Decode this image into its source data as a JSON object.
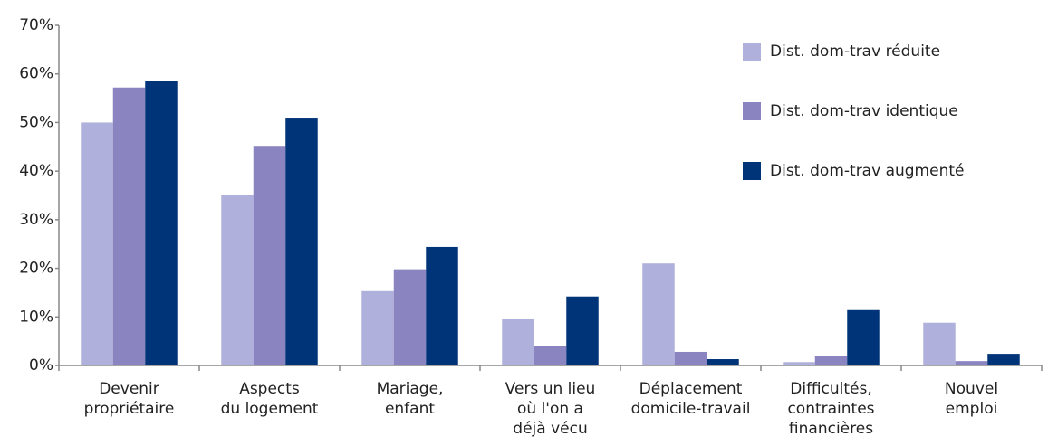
{
  "chart_data": {
    "type": "bar",
    "categories": [
      [
        "Devenir",
        "propriétaire"
      ],
      [
        "Aspects",
        "du logement"
      ],
      [
        "Mariage,",
        "enfant"
      ],
      [
        "Vers un lieu",
        "où l'on a",
        "déjà vécu"
      ],
      [
        "Déplacement",
        "domicile-travail"
      ],
      [
        "Difficultés,",
        "contraintes",
        "financières"
      ],
      [
        "Nouvel",
        "emploi"
      ]
    ],
    "series": [
      {
        "name": "Dist. dom-trav réduite",
        "color": "#b0b0dc",
        "values": [
          50,
          35,
          15.3,
          9.5,
          21,
          0.7,
          8.8
        ]
      },
      {
        "name": "Dist. dom-trav identique",
        "color": "#8a84c0",
        "values": [
          57.2,
          45.2,
          19.8,
          4,
          2.8,
          1.9,
          0.9
        ]
      },
      {
        "name": "Dist. dom-trav augmenté",
        "color": "#003478",
        "values": [
          58.5,
          51,
          24.4,
          14.2,
          1.3,
          11.4,
          2.4
        ]
      }
    ],
    "ylim": [
      0,
      70
    ],
    "yticks": [
      {
        "value": 0,
        "label": "0%"
      },
      {
        "value": 10,
        "label": "10%"
      },
      {
        "value": 20,
        "label": "20%"
      },
      {
        "value": 30,
        "label": "30%"
      },
      {
        "value": 40,
        "label": "40%"
      },
      {
        "value": 50,
        "label": "50%"
      },
      {
        "value": 60,
        "label": "60%"
      },
      {
        "value": 70,
        "label": "70%"
      }
    ],
    "grid": false,
    "legend": "upper right"
  }
}
